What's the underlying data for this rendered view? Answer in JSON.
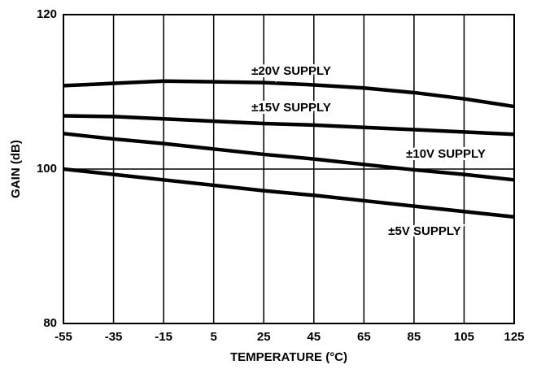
{
  "chart_data": {
    "type": "line",
    "xlabel": "TEMPERATURE (°C)",
    "ylabel": "GAIN (dB)",
    "x": [
      -55,
      -35,
      -15,
      5,
      25,
      45,
      65,
      85,
      105,
      125
    ],
    "xlim": [
      -55,
      125
    ],
    "xticks": [
      -55,
      -35,
      -15,
      5,
      25,
      45,
      65,
      85,
      105,
      125
    ],
    "ylim": [
      80,
      120
    ],
    "yticks": [
      80,
      100,
      120
    ],
    "grid": true,
    "series": [
      {
        "name": "±20V SUPPLY",
        "color": "#000000",
        "values": [
          110.8,
          111.1,
          111.4,
          111.3,
          111.2,
          110.9,
          110.5,
          109.9,
          109.1,
          108.1
        ]
      },
      {
        "name": "±15V SUPPLY",
        "color": "#000000",
        "values": [
          106.9,
          106.8,
          106.5,
          106.2,
          105.9,
          105.7,
          105.4,
          105.1,
          104.8,
          104.5
        ]
      },
      {
        "name": "±10V SUPPLY",
        "color": "#000000",
        "values": [
          104.6,
          103.9,
          103.3,
          102.6,
          101.9,
          101.3,
          100.6,
          99.9,
          99.3,
          98.6
        ]
      },
      {
        "name": "±5V SUPPLY",
        "color": "#000000",
        "values": [
          100.0,
          99.3,
          98.6,
          97.9,
          97.2,
          96.6,
          95.9,
          95.2,
          94.5,
          93.8
        ]
      }
    ]
  }
}
